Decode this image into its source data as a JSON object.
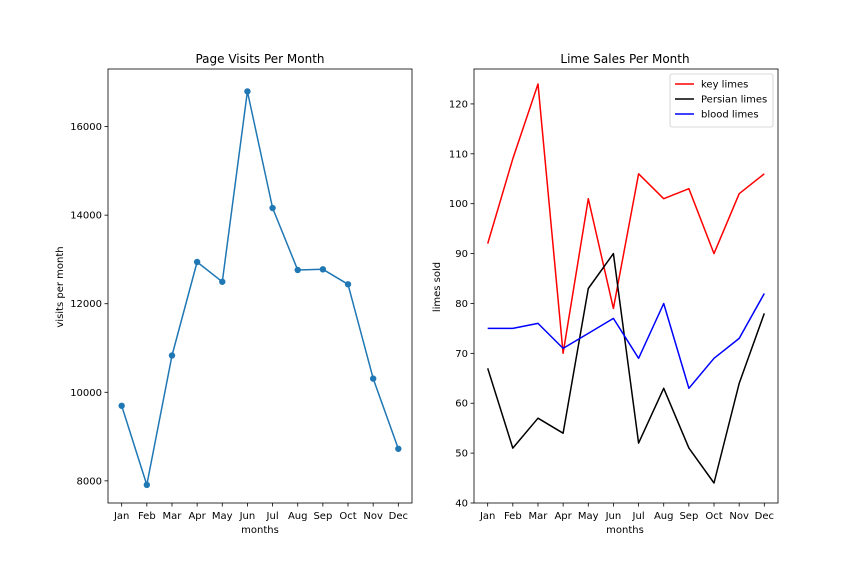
{
  "chart_data": [
    {
      "type": "line",
      "title": "Page Visits Per Month",
      "xlabel": "months",
      "ylabel": "visits per month",
      "categories": [
        "Jan",
        "Feb",
        "Mar",
        "Apr",
        "May",
        "Jun",
        "Jul",
        "Aug",
        "Sep",
        "Oct",
        "Nov",
        "Dec"
      ],
      "ylim": [
        7500,
        17300
      ],
      "yticks": [
        8000,
        10000,
        12000,
        14000,
        16000
      ],
      "markers": true,
      "grid": false,
      "series": [
        {
          "color": "#1f77b4",
          "values": [
            9695,
            7909,
            10831,
            12942,
            12495,
            16794,
            14161,
            12762,
            12777,
            12439,
            10309,
            8724
          ]
        }
      ]
    },
    {
      "type": "line",
      "title": "Lime Sales Per Month",
      "xlabel": "months",
      "ylabel": "limes sold",
      "categories": [
        "Jan",
        "Feb",
        "Mar",
        "Apr",
        "May",
        "Jun",
        "Jul",
        "Aug",
        "Sep",
        "Oct",
        "Nov",
        "Dec"
      ],
      "ylim": [
        40,
        127
      ],
      "yticks": [
        40,
        50,
        60,
        70,
        80,
        90,
        100,
        110,
        120
      ],
      "markers": false,
      "grid": false,
      "legend": "top-right",
      "series": [
        {
          "name": "key limes",
          "color": "#ff0000",
          "values": [
            92,
            109,
            124,
            70,
            101,
            79,
            106,
            101,
            103,
            90,
            102,
            106
          ]
        },
        {
          "name": "Persian limes",
          "color": "#000000",
          "values": [
            67,
            51,
            57,
            54,
            83,
            90,
            52,
            63,
            51,
            44,
            64,
            78
          ]
        },
        {
          "name": "blood limes",
          "color": "#0000ff",
          "values": [
            75,
            75,
            76,
            71,
            74,
            77,
            69,
            80,
            63,
            69,
            73,
            82
          ]
        }
      ]
    }
  ]
}
